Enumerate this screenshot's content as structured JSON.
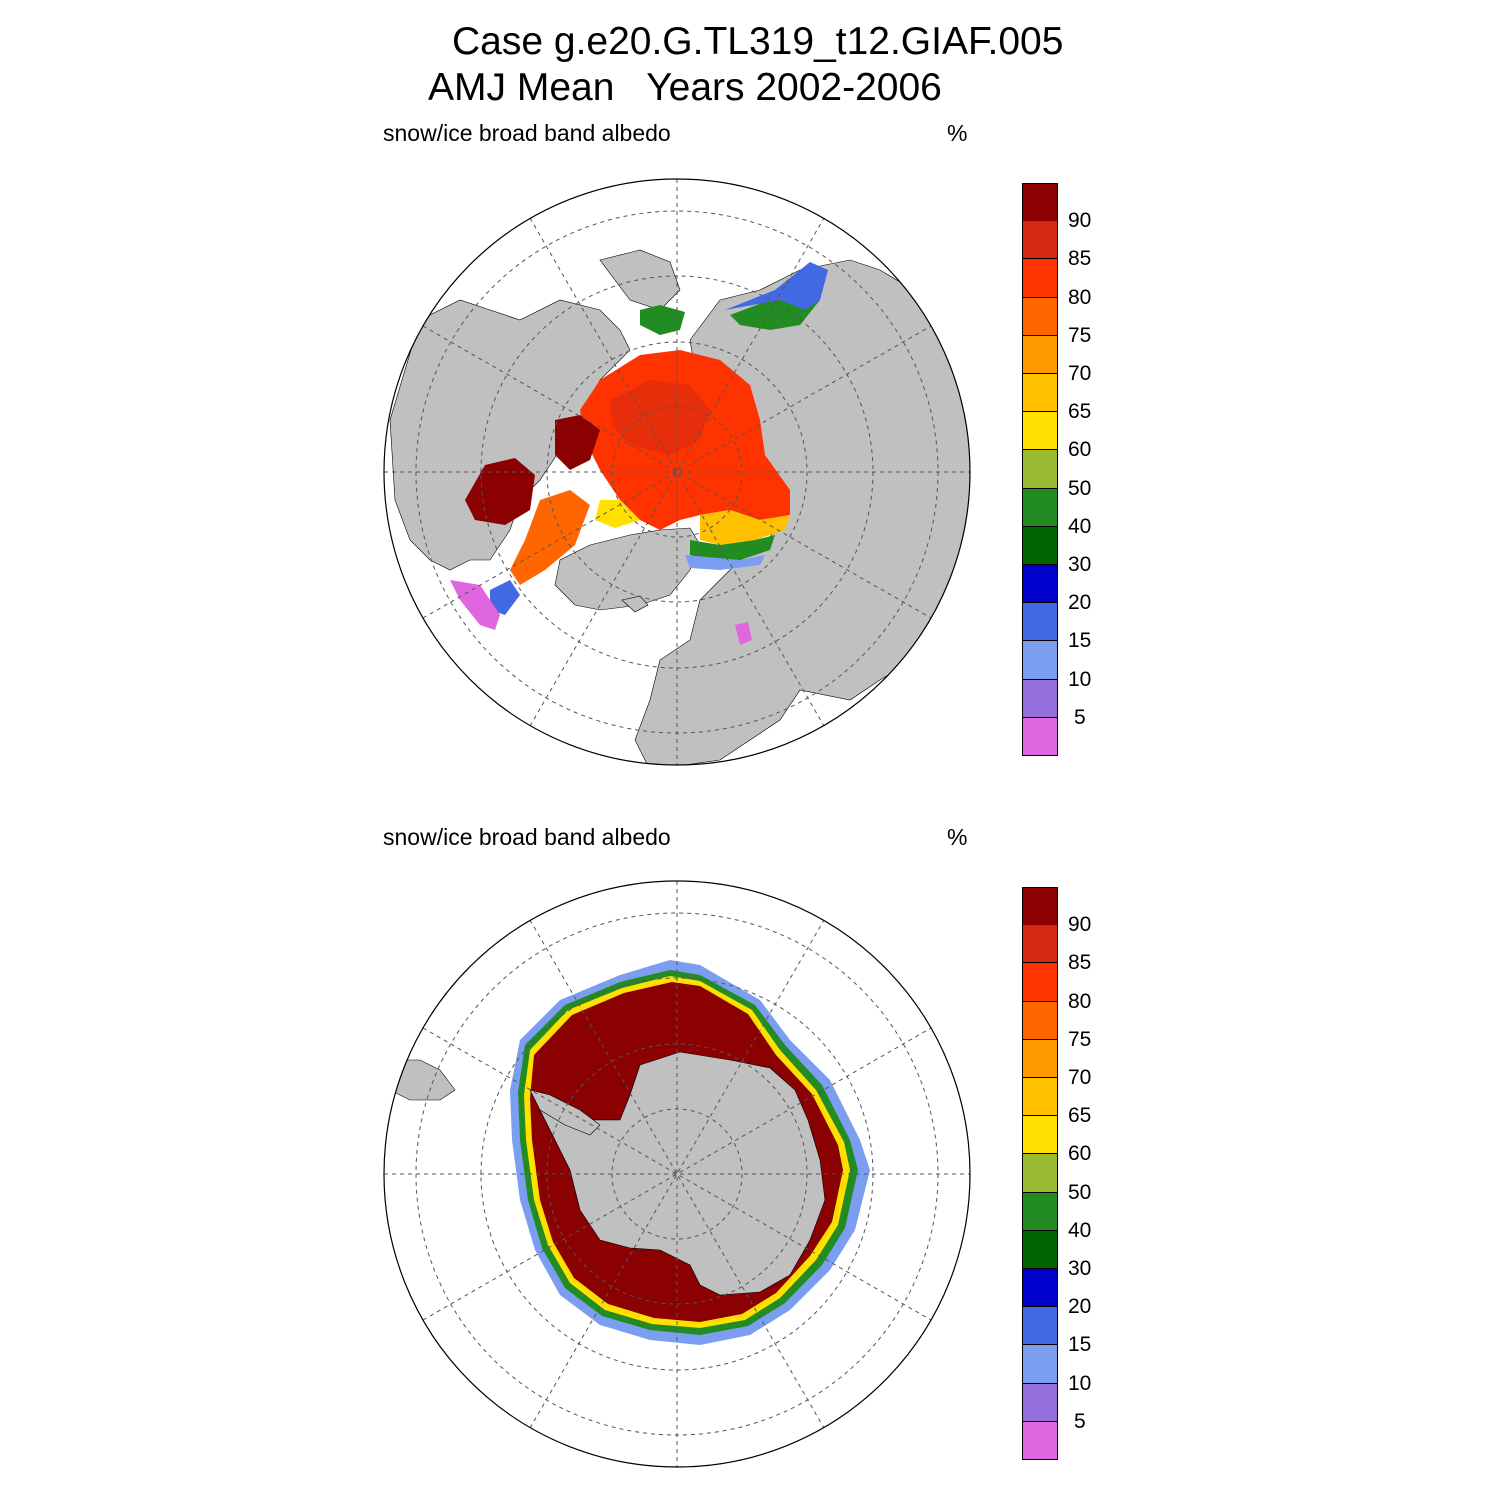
{
  "title": {
    "line1": "Case g.e20.G.TL319_t12.GIAF.005",
    "line2": "AMJ Mean   Years 2002-2006"
  },
  "panels": [
    {
      "id": "north",
      "hemisphere": "north",
      "variable": "snow/ice broad band albedo",
      "units": "%"
    },
    {
      "id": "south",
      "hemisphere": "south",
      "variable": "snow/ice broad band albedo",
      "units": "%"
    }
  ],
  "legend": {
    "labels": [
      "90",
      "85",
      "80",
      "75",
      "70",
      "65",
      "60",
      "50",
      "40",
      "30",
      "20",
      "15",
      "10",
      "5"
    ],
    "colors": [
      "#8b0000",
      "#d42a14",
      "#ff3300",
      "#ff6600",
      "#ff9900",
      "#ffc000",
      "#ffe000",
      "#99bb33",
      "#228b22",
      "#006400",
      "#0000cd",
      "#4169e1",
      "#7b9ef0",
      "#9370db",
      "#e066e0"
    ]
  },
  "map_colors": {
    "land": "#c0c0c0",
    "ocean": "#ffffff",
    "grid": "#555555"
  }
}
